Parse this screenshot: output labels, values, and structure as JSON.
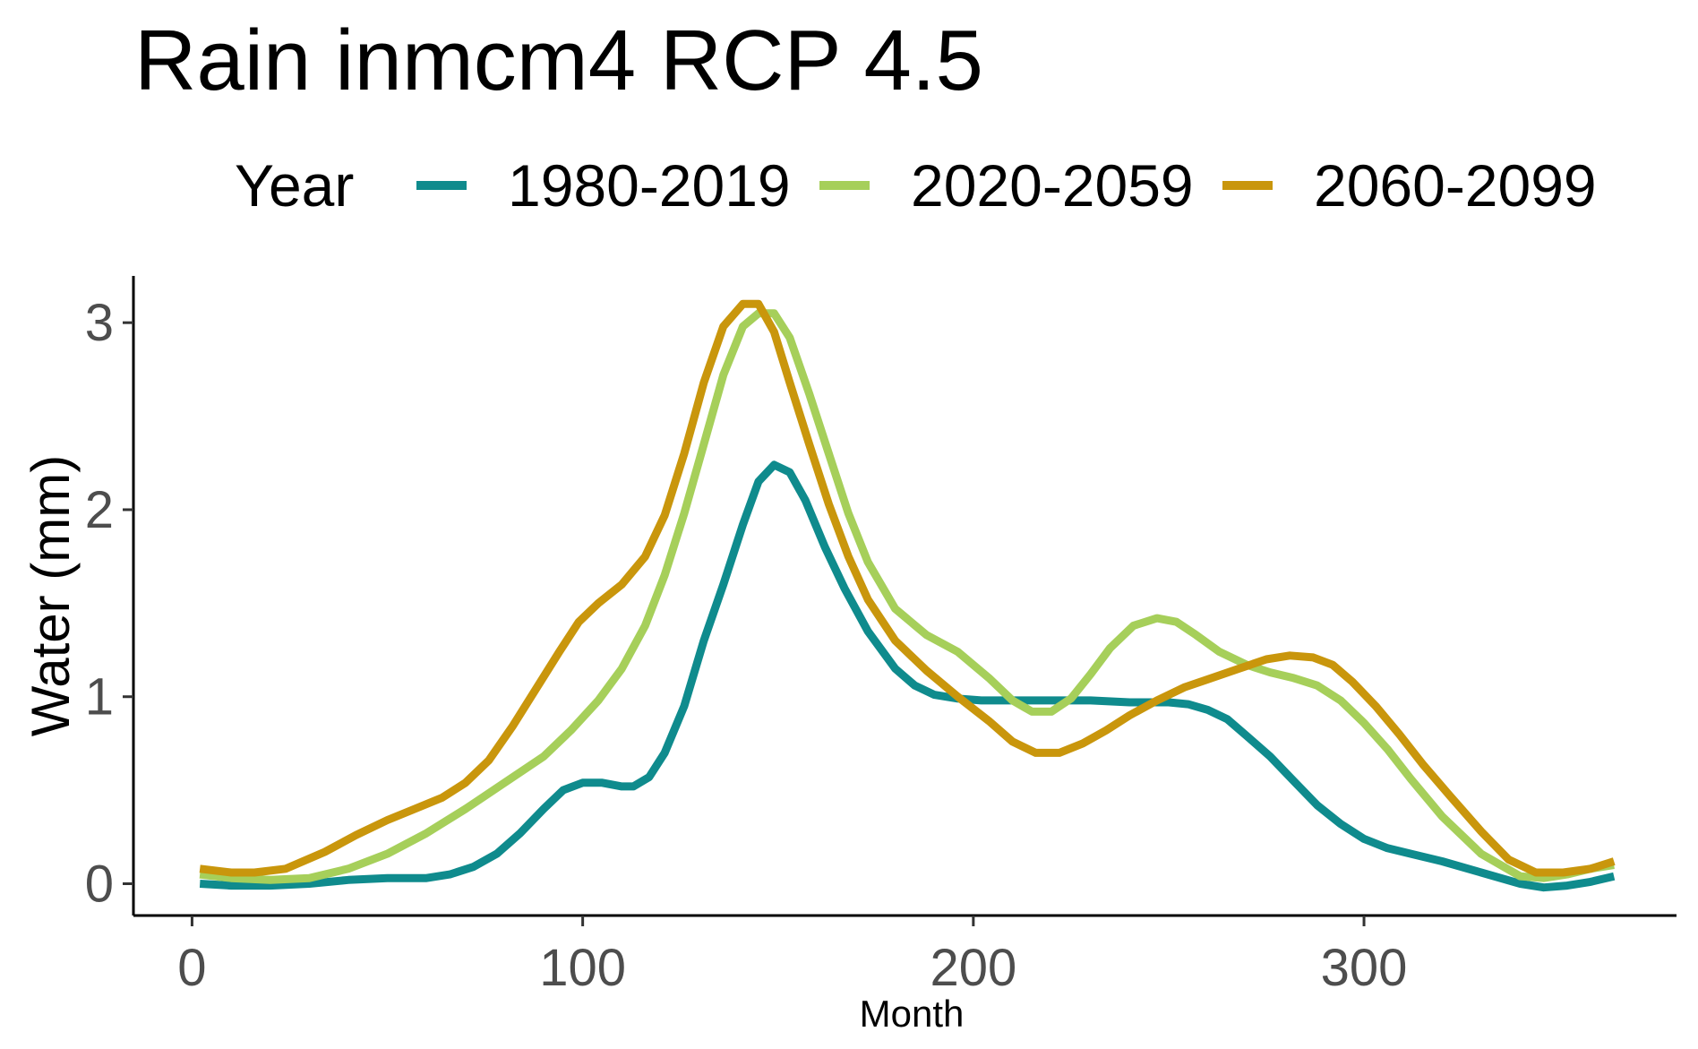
{
  "chart_data": {
    "type": "line",
    "title": "Rain inmcm4 RCP 4.5",
    "xlabel": "Month",
    "ylabel": "Water (mm)",
    "xlim": [
      -15,
      380
    ],
    "ylim": [
      -0.17,
      3.25
    ],
    "x_ticks": [
      0,
      100,
      200,
      300
    ],
    "y_ticks": [
      0,
      1,
      2,
      3
    ],
    "grid": false,
    "legend": {
      "title": "Year",
      "position": "top"
    },
    "series": [
      {
        "name": "1980-2019",
        "color": "#0f8b8d",
        "x": [
          2,
          10,
          20,
          30,
          40,
          50,
          60,
          66,
          72,
          78,
          84,
          90,
          95,
          100,
          105,
          110,
          113,
          117,
          121,
          126,
          131,
          136,
          141,
          145,
          149,
          153,
          157,
          162,
          167,
          173,
          180,
          185,
          190,
          196,
          202,
          210,
          220,
          230,
          240,
          250,
          255,
          260,
          265,
          270,
          276,
          282,
          288,
          294,
          300,
          306,
          312,
          320,
          330,
          340,
          346,
          352,
          358,
          364
        ],
        "y": [
          0.0,
          -0.01,
          -0.01,
          0.0,
          0.02,
          0.03,
          0.03,
          0.05,
          0.09,
          0.16,
          0.27,
          0.4,
          0.5,
          0.54,
          0.54,
          0.52,
          0.52,
          0.57,
          0.7,
          0.95,
          1.3,
          1.6,
          1.92,
          2.15,
          2.24,
          2.2,
          2.05,
          1.8,
          1.58,
          1.35,
          1.15,
          1.06,
          1.01,
          0.99,
          0.98,
          0.98,
          0.98,
          0.98,
          0.97,
          0.97,
          0.96,
          0.93,
          0.88,
          0.79,
          0.68,
          0.55,
          0.42,
          0.32,
          0.24,
          0.19,
          0.16,
          0.12,
          0.06,
          0.0,
          -0.02,
          -0.01,
          0.01,
          0.04
        ]
      },
      {
        "name": "2020-2059",
        "color": "#a6cf5a",
        "x": [
          2,
          10,
          20,
          30,
          40,
          50,
          60,
          70,
          80,
          90,
          97,
          104,
          110,
          116,
          121,
          126,
          131,
          136,
          141,
          145,
          149,
          153,
          158,
          163,
          168,
          173,
          180,
          188,
          196,
          204,
          210,
          215,
          220,
          225,
          230,
          235,
          241,
          247,
          252,
          257,
          263,
          270,
          276,
          282,
          288,
          294,
          300,
          306,
          312,
          320,
          330,
          340,
          346,
          352,
          358,
          364
        ],
        "y": [
          0.05,
          0.03,
          0.02,
          0.03,
          0.08,
          0.16,
          0.27,
          0.4,
          0.54,
          0.68,
          0.82,
          0.98,
          1.15,
          1.38,
          1.65,
          1.98,
          2.35,
          2.72,
          2.98,
          3.05,
          3.05,
          2.92,
          2.62,
          2.3,
          1.98,
          1.72,
          1.47,
          1.33,
          1.24,
          1.1,
          0.98,
          0.92,
          0.92,
          0.99,
          1.12,
          1.26,
          1.38,
          1.42,
          1.4,
          1.33,
          1.24,
          1.17,
          1.13,
          1.1,
          1.06,
          0.98,
          0.86,
          0.72,
          0.56,
          0.36,
          0.16,
          0.04,
          0.03,
          0.05,
          0.08,
          0.1
        ]
      },
      {
        "name": "2060-2099",
        "color": "#c9960c",
        "x": [
          2,
          10,
          16,
          24,
          34,
          42,
          50,
          57,
          64,
          70,
          76,
          82,
          88,
          94,
          99,
          104,
          110,
          116,
          121,
          126,
          131,
          136,
          141,
          145,
          149,
          153,
          158,
          163,
          168,
          173,
          180,
          188,
          196,
          204,
          210,
          216,
          222,
          228,
          234,
          240,
          247,
          254,
          261,
          268,
          275,
          281,
          287,
          292,
          297,
          303,
          309,
          315,
          322,
          330,
          337,
          344,
          351,
          358,
          364
        ],
        "y": [
          0.08,
          0.06,
          0.06,
          0.08,
          0.17,
          0.26,
          0.34,
          0.4,
          0.46,
          0.54,
          0.66,
          0.84,
          1.04,
          1.24,
          1.4,
          1.5,
          1.6,
          1.75,
          1.97,
          2.3,
          2.68,
          2.98,
          3.1,
          3.1,
          2.95,
          2.68,
          2.35,
          2.03,
          1.75,
          1.52,
          1.3,
          1.14,
          1.0,
          0.87,
          0.76,
          0.7,
          0.7,
          0.75,
          0.82,
          0.9,
          0.98,
          1.05,
          1.1,
          1.15,
          1.2,
          1.22,
          1.21,
          1.17,
          1.08,
          0.95,
          0.8,
          0.64,
          0.47,
          0.28,
          0.13,
          0.06,
          0.06,
          0.08,
          0.12
        ]
      }
    ]
  }
}
